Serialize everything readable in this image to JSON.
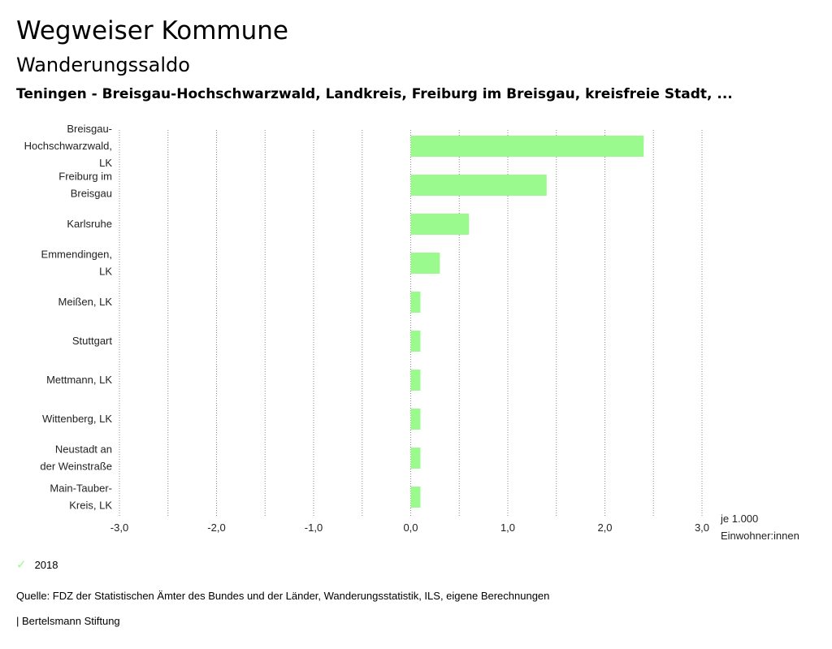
{
  "header": {
    "title": "Wegweiser Kommune",
    "subtitle": "Wanderungssaldo",
    "region": "Teningen - Breisgau-Hochschwarzwald, Landkreis, Freiburg im Breisgau, kreisfreie Stadt, ..."
  },
  "chart_data": {
    "type": "bar",
    "orientation": "horizontal",
    "categories": [
      [
        "Breisgau-",
        "Hochschwarzwald,",
        "LK"
      ],
      [
        "Freiburg im",
        "Breisgau"
      ],
      [
        "Karlsruhe"
      ],
      [
        "Emmendingen,",
        "LK"
      ],
      [
        "Meißen, LK"
      ],
      [
        "Stuttgart"
      ],
      [
        "Mettmann, LK"
      ],
      [
        "Wittenberg, LK"
      ],
      [
        "Neustadt an",
        "der Weinstraße"
      ],
      [
        "Main-Tauber-",
        "Kreis, LK"
      ]
    ],
    "series": [
      {
        "name": "2018",
        "values": [
          2.4,
          1.4,
          0.6,
          0.3,
          0.1,
          0.1,
          0.1,
          0.1,
          0.1,
          0.1
        ]
      }
    ],
    "xlim": [
      -3,
      3
    ],
    "ticks": [
      "-3,0",
      "-2,0",
      "-1,0",
      "0,0",
      "1,0",
      "2,0",
      "3,0"
    ],
    "tick_values": [
      -3,
      -2,
      -1,
      0,
      1,
      2,
      3
    ],
    "unit_label": [
      "je 1.000",
      "Einwohner:innen"
    ],
    "grid": true,
    "bar_color": "#9afa8e"
  },
  "legend": {
    "label": "2018",
    "color": "#9afa8e"
  },
  "footer": {
    "source": "Quelle: FDZ der Statistischen Ämter des Bundes und der Länder, Wanderungsstatistik, ILS, eigene Berechnungen",
    "credit": "| Bertelsmann Stiftung"
  }
}
